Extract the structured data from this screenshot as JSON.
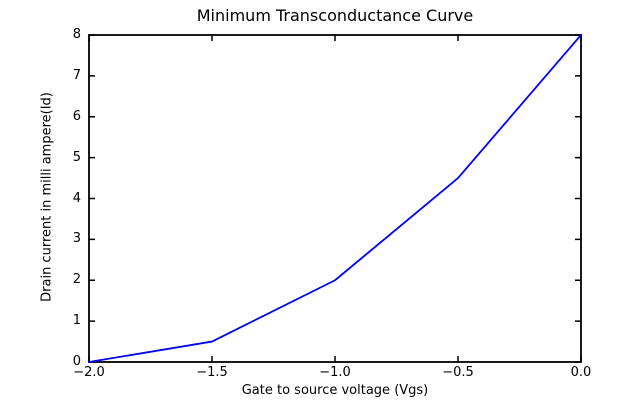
{
  "chart_data": {
    "type": "line",
    "title": "Minimum Transconductance Curve",
    "xlabel": "Gate to source voltage (Vgs)",
    "ylabel": "Drain current in milli ampere(Id)",
    "x": [
      -2.0,
      -1.5,
      -1.0,
      -0.5,
      0.0
    ],
    "y": [
      0.0,
      0.5,
      2.0,
      4.5,
      8.0
    ],
    "xlim": [
      -2.0,
      0.0
    ],
    "ylim": [
      0,
      8
    ],
    "x_ticks": [
      -2.0,
      -1.5,
      -1.0,
      -0.5,
      0.0
    ],
    "x_tick_labels": [
      "−2.0",
      "−1.5",
      "−1.0",
      "−0.5",
      "0.0"
    ],
    "y_ticks": [
      0,
      1,
      2,
      3,
      4,
      5,
      6,
      7,
      8
    ],
    "y_tick_labels": [
      "0",
      "1",
      "2",
      "3",
      "4",
      "5",
      "6",
      "7",
      "8"
    ],
    "grid": false,
    "legend": null,
    "line_color": "#0000ff",
    "axis_color": "#000000",
    "background_color": "#ffffff"
  }
}
